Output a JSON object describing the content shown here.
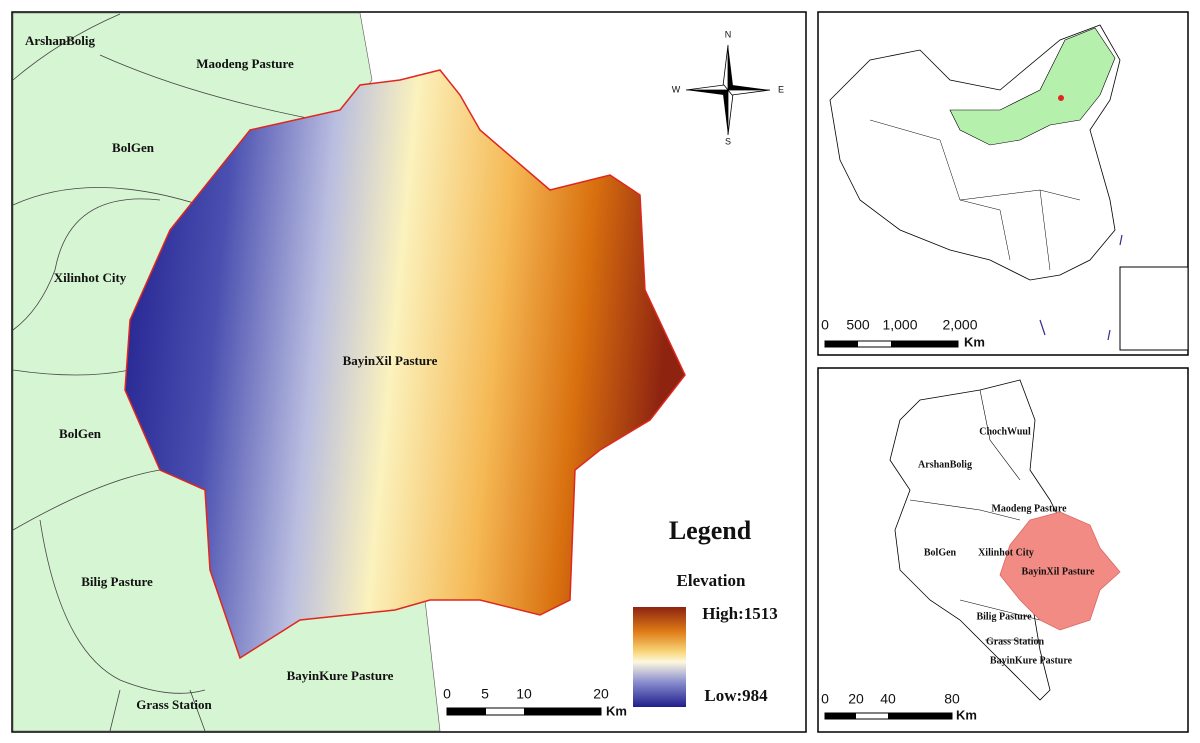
{
  "main_map": {
    "labels": [
      "ArshanBolig",
      "Maodeng Pasture",
      "BolGen",
      "Xilinhot City",
      "BayinXil Pasture",
      "BolGen",
      "Bilig Pasture",
      "BayinKure Pasture",
      "Grass Station"
    ],
    "compass": {
      "north": "N",
      "south": "S",
      "east": "E",
      "west": "W"
    },
    "legend": {
      "title": "Legend",
      "subtitle": "Elevation",
      "high": "High:1513",
      "low": "Low:984"
    },
    "scale": {
      "ticks": [
        "0",
        "5",
        "10",
        "20"
      ],
      "unit": "Km"
    }
  },
  "china_inset": {
    "scale": {
      "ticks": [
        "0",
        "500",
        "1,000",
        "2,000"
      ],
      "unit": "Km"
    }
  },
  "region_inset": {
    "labels": [
      "ChochWuul",
      "ArshanBolig",
      "Maodeng Pasture",
      "BolGen",
      "Xilinhot City",
      "BayinXil Pasture",
      "Bilig Pasture",
      "Grass Station",
      "BayinKure Pasture"
    ],
    "scale": {
      "ticks": [
        "0",
        "20",
        "40",
        "80"
      ],
      "unit": "Km"
    }
  }
}
